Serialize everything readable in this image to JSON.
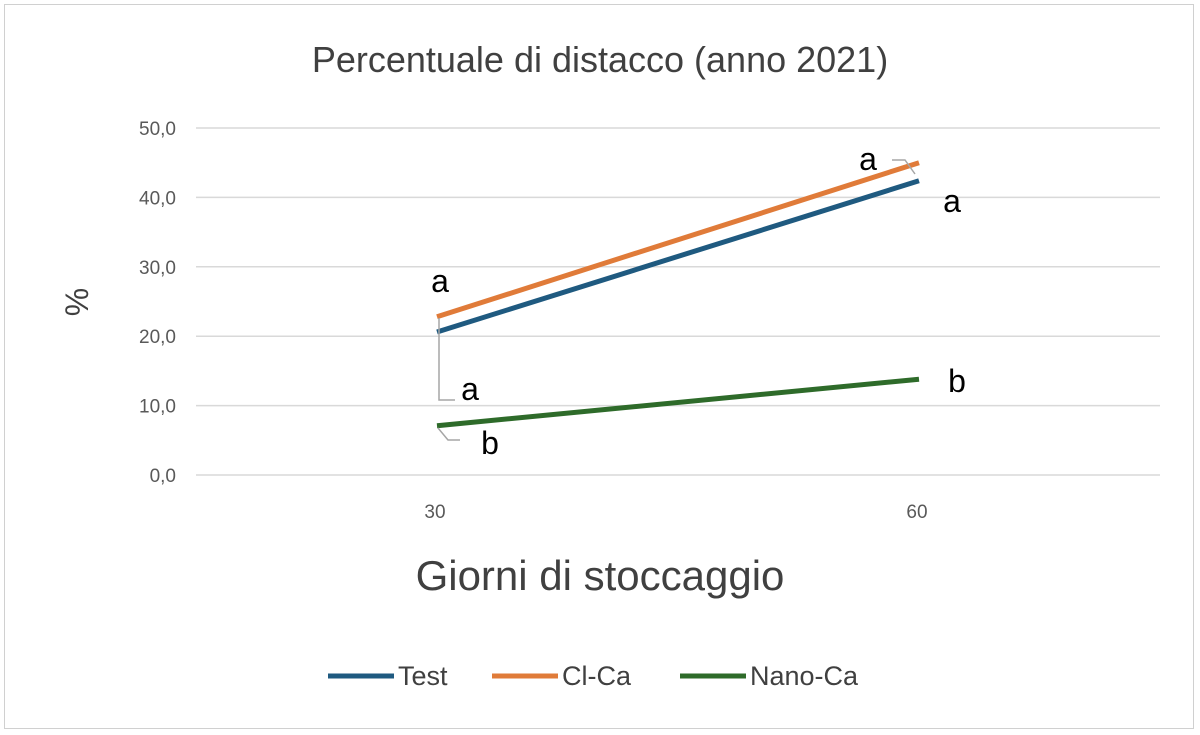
{
  "chart_data": {
    "type": "line",
    "title": "Percentuale di distacco (anno 2021)",
    "xlabel": "Giorni di stoccaggio",
    "ylabel": "%",
    "categories": [
      "30",
      "60"
    ],
    "ylim": [
      0,
      50
    ],
    "yticks": [
      "0,0",
      "10,0",
      "20,0",
      "30,0",
      "40,0",
      "50,0"
    ],
    "grid": true,
    "legend": "bottom",
    "series": [
      {
        "name": "Test",
        "color": "#1f5a80",
        "values": [
          20.6,
          42.4
        ],
        "labels": [
          "a",
          "a"
        ]
      },
      {
        "name": "Cl-Ca",
        "color": "#e07b39",
        "values": [
          22.8,
          45.0
        ],
        "labels": [
          "a",
          "a"
        ]
      },
      {
        "name": "Nano-Ca",
        "color": "#2e6b2a",
        "values": [
          7.1,
          13.8
        ],
        "labels": [
          "b",
          "b"
        ]
      }
    ]
  }
}
